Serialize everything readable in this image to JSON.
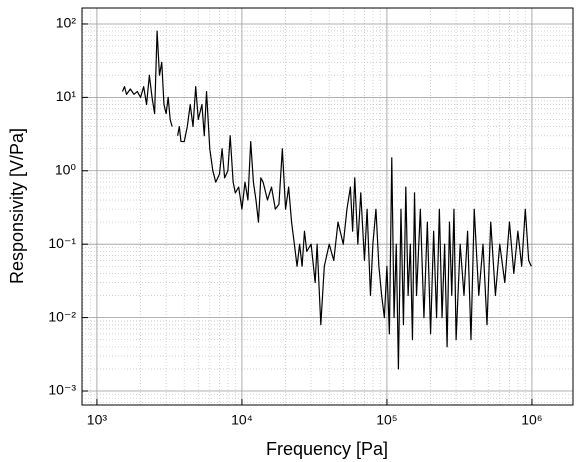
{
  "chart_data": {
    "type": "line",
    "xlabel": "Frequency [Pa]",
    "ylabel": "Responsivity [V/Pa]",
    "xscale": "log",
    "yscale": "log",
    "grid": true,
    "minor_grid": true,
    "xlim": [
      789,
      1920000
    ],
    "ylim": [
      0.000645,
      165
    ],
    "xticks": [
      {
        "value": 1000,
        "label": "10³"
      },
      {
        "value": 10000,
        "label": "10⁴"
      },
      {
        "value": 100000,
        "label": "10⁵"
      },
      {
        "value": 1000000,
        "label": "10⁶"
      }
    ],
    "yticks": [
      {
        "value": 0.001,
        "label": "10⁻³"
      },
      {
        "value": 0.01,
        "label": "10⁻²"
      },
      {
        "value": 0.1,
        "label": "10⁻¹"
      },
      {
        "value": 1,
        "label": "10⁰"
      },
      {
        "value": 10,
        "label": "10¹"
      },
      {
        "value": 100,
        "label": "10²"
      }
    ],
    "x": [
      1500,
      1550,
      1600,
      1700,
      1800,
      1900,
      2000,
      2100,
      2200,
      2300,
      2400,
      2500,
      2600,
      2700,
      2800,
      2900,
      3000,
      3100,
      3200,
      3300,
      3450,
      3600,
      3700,
      3800,
      4000,
      4200,
      4400,
      4600,
      4800,
      5000,
      5300,
      5500,
      5700,
      6000,
      6300,
      6600,
      7000,
      7300,
      7600,
      8000,
      8300,
      8700,
      9000,
      9500,
      10000,
      10500,
      11000,
      11500,
      12000,
      12500,
      13000,
      13500,
      14000,
      15000,
      16000,
      17000,
      18000,
      19000,
      20000,
      21000,
      22000,
      23000,
      24000,
      25000,
      26000,
      27000,
      28000,
      30000,
      32000,
      33000,
      35000,
      37000,
      40000,
      43000,
      46000,
      50000,
      53000,
      56000,
      58000,
      60000,
      63000,
      66000,
      70000,
      73000,
      77000,
      80000,
      84000,
      88000,
      92000,
      96000,
      100000,
      104000,
      108000,
      112000,
      116000,
      120000,
      125000,
      130000,
      135000,
      140000,
      145000,
      150000,
      155000,
      160000,
      170000,
      180000,
      190000,
      200000,
      210000,
      220000,
      230000,
      240000,
      250000,
      260000,
      270000,
      280000,
      290000,
      300000,
      320000,
      340000,
      360000,
      380000,
      400000,
      430000,
      460000,
      490000,
      520000,
      560000,
      600000,
      650000,
      700000,
      750000,
      800000,
      850000,
      900000,
      950000,
      990000
    ],
    "series": [
      {
        "name": "Responsivity",
        "color": "#000000",
        "values": [
          12,
          14,
          11,
          13,
          11,
          12,
          10,
          14,
          8,
          20,
          10,
          6,
          80,
          20,
          30,
          8,
          6,
          10,
          5,
          4,
          null,
          3,
          4,
          2.5,
          2.5,
          4,
          8,
          4,
          14,
          5,
          8,
          3,
          12,
          2,
          1,
          0.7,
          0.9,
          2,
          0.8,
          1,
          3,
          0.7,
          0.5,
          0.6,
          0.3,
          0.7,
          0.4,
          2.5,
          0.7,
          0.4,
          0.2,
          0.8,
          0.7,
          0.4,
          0.6,
          0.3,
          0.35,
          2,
          0.3,
          0.6,
          0.2,
          0.1,
          0.05,
          0.1,
          0.05,
          0.15,
          0.08,
          0.1,
          0.03,
          0.1,
          0.008,
          0.05,
          0.1,
          0.06,
          0.2,
          0.1,
          0.3,
          0.6,
          0.15,
          0.8,
          0.1,
          0.5,
          0.06,
          0.3,
          0.02,
          0.1,
          0.3,
          0.05,
          0.02,
          0.01,
          0.05,
          0.006,
          1.5,
          0.01,
          0.1,
          0.002,
          0.3,
          0.008,
          0.6,
          0.02,
          0.1,
          0.005,
          0.5,
          0.02,
          0.3,
          0.01,
          0.2,
          0.006,
          0.15,
          0.01,
          0.3,
          0.01,
          0.1,
          0.004,
          0.2,
          0.02,
          0.3,
          0.005,
          0.1,
          0.02,
          0.15,
          0.005,
          0.3,
          0.02,
          0.1,
          0.008,
          0.2,
          0.02,
          0.1,
          0.03,
          0.2,
          0.04,
          0.15,
          0.05,
          0.3,
          0.06,
          0.05
        ]
      }
    ]
  }
}
